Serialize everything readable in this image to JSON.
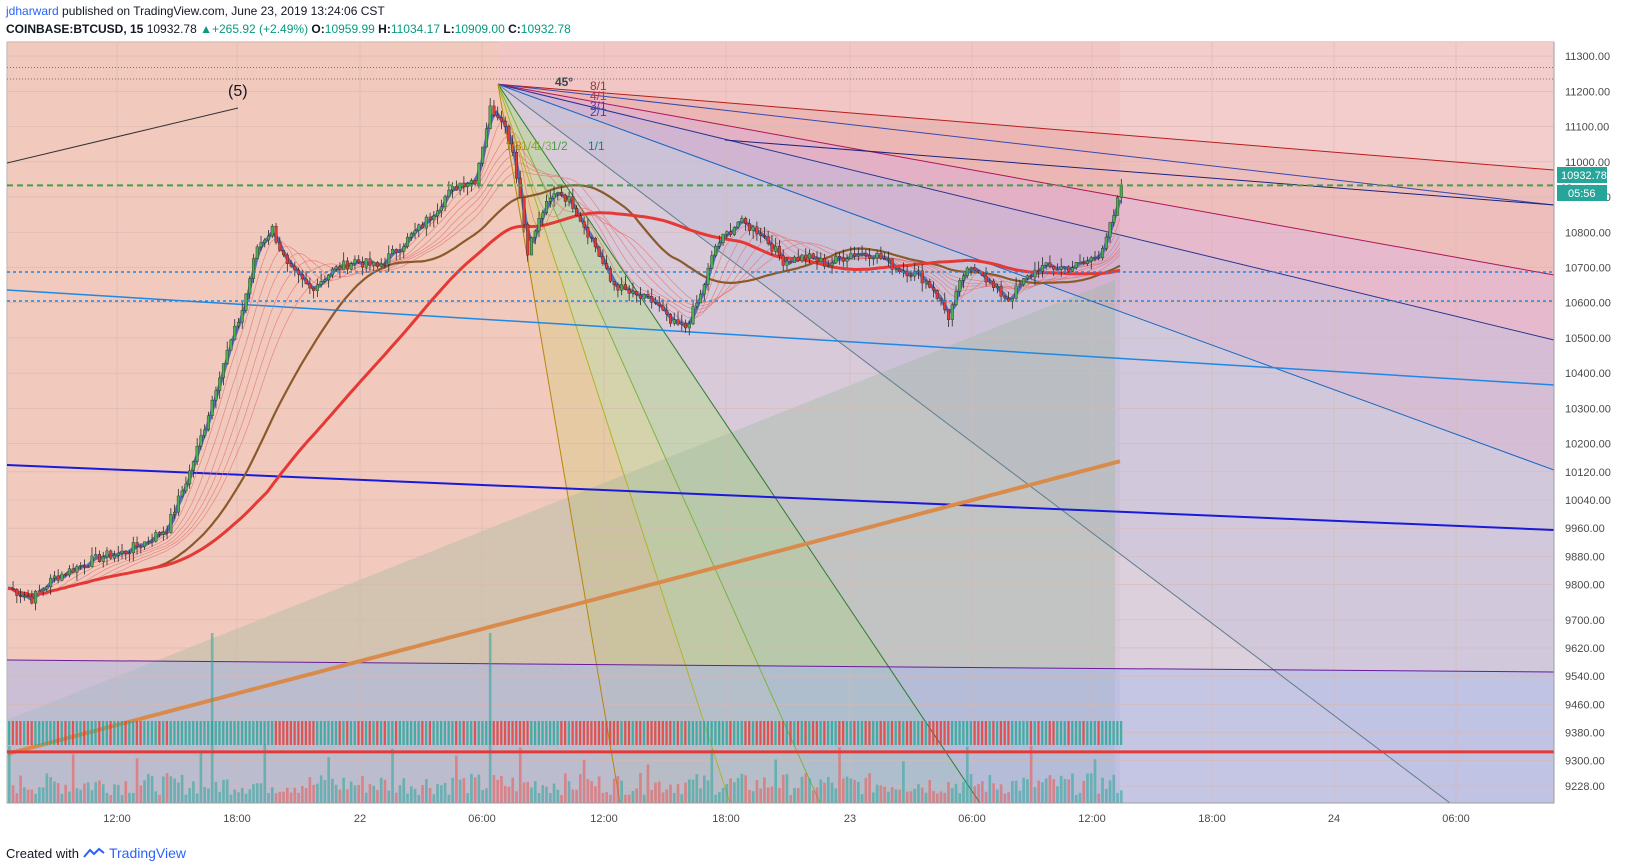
{
  "header": {
    "author": "jdharward",
    "published_text": "published on TradingView.com, June 23, 2019 13:24:06 CST"
  },
  "quote": {
    "symbol": "COINBASE:BTCUSD, 15",
    "last": "10932.78",
    "change_arrow": "▲",
    "change": "+265.92 (+2.49%)",
    "o_label": "O:",
    "o": "10959.99",
    "h_label": "H:",
    "h": "11034.17",
    "l_label": "L:",
    "l": "10909.00",
    "c_label": "C:",
    "c": "10932.78"
  },
  "price_tag": {
    "price": "10932.78",
    "countdown": "05:56",
    "partial": "10"
  },
  "annotations": {
    "wave_label": "(5)",
    "fan_45": "45°",
    "fan_ratios_top": [
      "8/1",
      "4/1",
      "3/1",
      "2/1"
    ],
    "fan_ratios_bottom": [
      "1/8",
      "1/4",
      "1/3",
      "1/2",
      "1/1"
    ]
  },
  "footer": {
    "created_with": "Created with",
    "brand": "TradingView"
  },
  "colors": {
    "up": "#26a69a",
    "down": "#ef5350",
    "ema_fast": "#5b6fb5",
    "ma_brown": "#8b5a2b",
    "ma_red": "#e53935",
    "ma_orange": "#d98b4c",
    "levels_dashed_green": "#43a047",
    "levels_dashed_blue": "#1e88e5",
    "support_red": "#e53935"
  },
  "chart_data": {
    "type": "candlestick",
    "symbol": "COINBASE:BTCUSD",
    "interval": "15",
    "y_axis": {
      "range": [
        9180,
        11340
      ],
      "ticks": [
        11300,
        11200,
        11100,
        11000,
        10900,
        10800,
        10700,
        10600,
        10500,
        10400,
        10300,
        10200,
        10120,
        10040,
        9960,
        9880,
        9800,
        9700,
        9620,
        9540,
        9460,
        9380,
        9300,
        9228
      ]
    },
    "x_axis": {
      "ticks": [
        "12:00",
        "18:00",
        "22",
        "06:00",
        "12:00",
        "18:00",
        "23",
        "06:00",
        "12:00",
        "18:00",
        "24",
        "06:00"
      ]
    },
    "last_price": 10932.78,
    "ohlc_last": {
      "open": 10959.99,
      "high": 11034.17,
      "low": 10909.0,
      "close": 10932.78
    },
    "key_levels": [
      11268,
      11235,
      10933,
      10687,
      10605,
      9325
    ],
    "price_path": [
      [
        0,
        9790
      ],
      [
        6,
        9760
      ],
      [
        12,
        9820
      ],
      [
        20,
        9860
      ],
      [
        25,
        9880
      ],
      [
        30,
        9890
      ],
      [
        36,
        9920
      ],
      [
        42,
        9960
      ],
      [
        48,
        10120
      ],
      [
        52,
        10250
      ],
      [
        56,
        10400
      ],
      [
        62,
        10580
      ],
      [
        66,
        10760
      ],
      [
        70,
        10810
      ],
      [
        74,
        10700
      ],
      [
        80,
        10640
      ],
      [
        86,
        10690
      ],
      [
        92,
        10720
      ],
      [
        98,
        10700
      ],
      [
        104,
        10760
      ],
      [
        110,
        10820
      ],
      [
        116,
        10900
      ],
      [
        120,
        10940
      ],
      [
        124,
        10950
      ],
      [
        128,
        11150
      ],
      [
        131,
        11130
      ],
      [
        134,
        11030
      ],
      [
        136,
        10900
      ],
      [
        138,
        10750
      ],
      [
        142,
        10860
      ],
      [
        146,
        10920
      ],
      [
        150,
        10880
      ],
      [
        156,
        10760
      ],
      [
        160,
        10660
      ],
      [
        166,
        10620
      ],
      [
        172,
        10600
      ],
      [
        176,
        10540
      ],
      [
        180,
        10530
      ],
      [
        184,
        10620
      ],
      [
        188,
        10760
      ],
      [
        194,
        10830
      ],
      [
        200,
        10800
      ],
      [
        206,
        10720
      ],
      [
        212,
        10730
      ],
      [
        218,
        10710
      ],
      [
        224,
        10740
      ],
      [
        230,
        10740
      ],
      [
        236,
        10700
      ],
      [
        242,
        10680
      ],
      [
        246,
        10640
      ],
      [
        250,
        10560
      ],
      [
        254,
        10680
      ],
      [
        258,
        10700
      ],
      [
        262,
        10640
      ],
      [
        266,
        10610
      ],
      [
        270,
        10660
      ],
      [
        274,
        10700
      ],
      [
        278,
        10700
      ],
      [
        282,
        10700
      ],
      [
        286,
        10710
      ],
      [
        290,
        10740
      ],
      [
        292,
        10790
      ],
      [
        294,
        10840
      ],
      [
        296,
        10932
      ]
    ]
  }
}
